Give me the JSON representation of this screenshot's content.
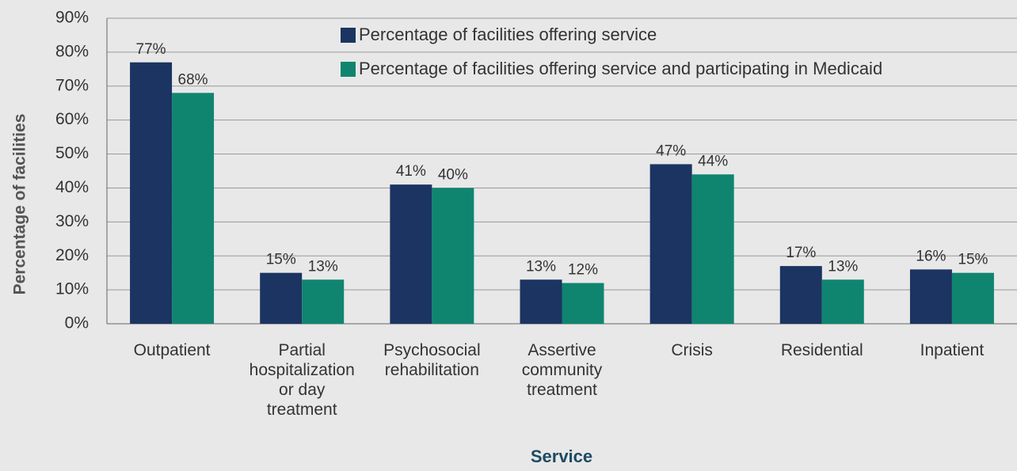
{
  "chart_data": {
    "type": "bar",
    "y_label": "Percentage of facilities",
    "x_label": "Service",
    "categories": [
      "Outpatient",
      "Partial hospitalization or day treatment",
      "Psychosocial rehabilitation",
      "Assertive community treatment",
      "Crisis",
      "Residential",
      "Inpatient"
    ],
    "series": [
      {
        "name": "Percentage of facilities offering service",
        "color": "#1b3461",
        "values": [
          77,
          15,
          41,
          13,
          47,
          17,
          16
        ],
        "value_labels": [
          "77%",
          "15%",
          "41%",
          "13%",
          "47%",
          "17%",
          "16%"
        ]
      },
      {
        "name": "Percentage of facilities offering service and participating in Medicaid",
        "color": "#0f8570",
        "values": [
          68,
          13,
          40,
          12,
          44,
          13,
          15
        ],
        "value_labels": [
          "68%",
          "13%",
          "40%",
          "12%",
          "44%",
          "13%",
          "15%"
        ]
      }
    ],
    "ylim": [
      0,
      90
    ],
    "yticks": [
      {
        "value": 0,
        "label": "0%"
      },
      {
        "value": 10,
        "label": "10%"
      },
      {
        "value": 20,
        "label": "20%"
      },
      {
        "value": 30,
        "label": "30%"
      },
      {
        "value": 40,
        "label": "40%"
      },
      {
        "value": 50,
        "label": "50%"
      },
      {
        "value": 60,
        "label": "60%"
      },
      {
        "value": 70,
        "label": "70%"
      },
      {
        "value": 80,
        "label": "80%"
      },
      {
        "value": 90,
        "label": "90%"
      }
    ],
    "grid": true
  }
}
